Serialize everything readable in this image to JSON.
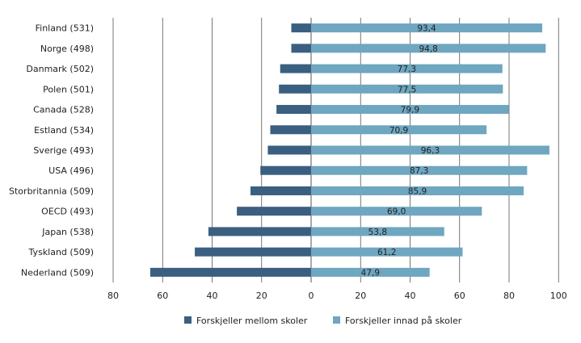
{
  "chart_data": {
    "type": "bar",
    "orientation": "horizontal-diverging",
    "categories": [
      "Finland (531)",
      "Norge (498)",
      "Danmark (502)",
      "Polen (501)",
      "Canada (528)",
      "Estland (534)",
      "Sverige (493)",
      "USA (496)",
      "Storbritannia (509)",
      "OECD (493)",
      "Japan (538)",
      "Tyskland (509)",
      "Nederland (509)"
    ],
    "series": [
      {
        "name": "Forskjeller mellom skoler",
        "color": "#3a5f80",
        "values": [
          8,
          8,
          12.5,
          13,
          14,
          16.5,
          17.5,
          20.5,
          24.5,
          30,
          41.5,
          47,
          65
        ]
      },
      {
        "name": "Forskjeller innad på skoler",
        "color": "#6fa6c0",
        "values": [
          93.4,
          94.8,
          77.3,
          77.5,
          79.9,
          70.9,
          96.3,
          87.3,
          85.9,
          69.0,
          53.8,
          61.2,
          47.9
        ]
      }
    ],
    "data_labels": [
      "93,4",
      "94,8",
      "77,3",
      "77,5",
      "79,9",
      "70,9",
      "96,3",
      "87,3",
      "85,9",
      "69,0",
      "53,8",
      "61,2",
      "47,9"
    ],
    "x_ticks": [
      "80",
      "60",
      "40",
      "20",
      "0",
      "20",
      "40",
      "60",
      "80",
      "100"
    ],
    "xlim": [
      -80,
      100
    ],
    "grid": "vertical",
    "legend_position": "bottom-center"
  }
}
